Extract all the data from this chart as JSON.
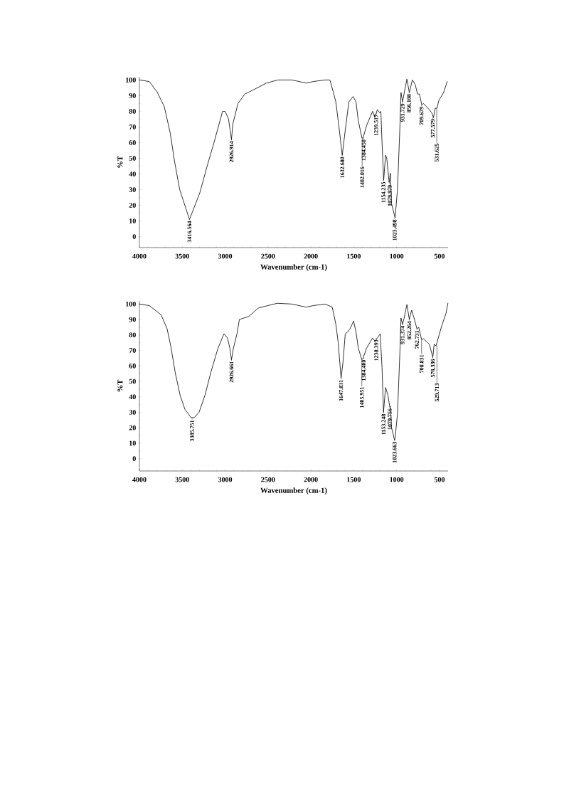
{
  "chart_data": [
    {
      "type": "line",
      "xlabel": "Wavenumber (cm-1)",
      "ylabel": "%T",
      "color": "#000000",
      "x": [
        4000,
        3884,
        3790,
        3710,
        3640,
        3590,
        3530,
        3416,
        3380,
        3295,
        3210,
        3130,
        3075,
        3030,
        3000,
        2960,
        2926,
        2910,
        2850,
        2770,
        2660,
        2520,
        2385,
        2221,
        2055,
        1972,
        1834,
        1778,
        1737,
        1709,
        1668,
        1634,
        1599,
        1557,
        1507,
        1474,
        1447,
        1405,
        1391,
        1350,
        1280,
        1253,
        1225,
        1197,
        1184,
        1170,
        1151,
        1129,
        1115,
        1087,
        1073,
        1059,
        1018,
        990,
        963,
        949,
        940,
        931,
        907,
        880,
        852,
        816,
        783,
        756,
        734,
        706,
        687,
        618,
        590,
        571,
        549,
        530,
        507,
        452,
        410
      ],
      "values": [
        100,
        99,
        92,
        83,
        66,
        48,
        30,
        11,
        16,
        28,
        45,
        60,
        71,
        80,
        80,
        75,
        62,
        72,
        85,
        91,
        94,
        98,
        100,
        100,
        98,
        99,
        100,
        100,
        92,
        86,
        68,
        52,
        68,
        86,
        89.5,
        86,
        74,
        63,
        63,
        71,
        80,
        76,
        81,
        79,
        80,
        60,
        36,
        52,
        50,
        34.5,
        40.5,
        21,
        12,
        30,
        68,
        92,
        89,
        86,
        93,
        100.5,
        92,
        100,
        97,
        91,
        91,
        84,
        85,
        81,
        79,
        76,
        82,
        82,
        87,
        92,
        99
      ],
      "xlim": [
        4000,
        400
      ],
      "ylim": [
        -7,
        102
      ],
      "xticks": [
        4000,
        3500,
        3000,
        2500,
        2000,
        1500,
        1000,
        500
      ],
      "yticks": [
        0,
        10,
        20,
        30,
        40,
        50,
        60,
        70,
        80,
        90,
        100
      ],
      "annotations": [
        {
          "text": "3416.564",
          "x": 3416,
          "y": 11
        },
        {
          "text": "2926.914",
          "x": 2926,
          "y": 62
        },
        {
          "text": "1632.680",
          "x": 1634,
          "y": 52
        },
        {
          "text": "1384.450",
          "x": 1384,
          "y": 63
        },
        {
          "text": "1402.016",
          "x": 1402,
          "y": 63
        },
        {
          "text": "1239.517",
          "x": 1239,
          "y": 79
        },
        {
          "text": "1154.235",
          "x": 1154,
          "y": 36
        },
        {
          "text": "1079.979",
          "x": 1080,
          "y": 34
        },
        {
          "text": "1023.498",
          "x": 1023,
          "y": 12
        },
        {
          "text": "931.729",
          "x": 931,
          "y": 86
        },
        {
          "text": "856.108",
          "x": 856,
          "y": 92
        },
        {
          "text": "709.679",
          "x": 710,
          "y": 84
        },
        {
          "text": "577.579",
          "x": 578,
          "y": 76
        },
        {
          "text": "531.625",
          "x": 532,
          "y": 82
        }
      ]
    },
    {
      "type": "line",
      "xlabel": "Wavenumber (cm-1)",
      "ylabel": "%T",
      "color": "#000000",
      "x": [
        4000,
        3884,
        3746,
        3677,
        3635,
        3580,
        3525,
        3470,
        3400,
        3360,
        3304,
        3235,
        3166,
        3083,
        3014,
        2972,
        2945,
        2926,
        2903,
        2862,
        2834,
        2724,
        2613,
        2503,
        2392,
        2221,
        2055,
        1972,
        1834,
        1751,
        1709,
        1681,
        1648,
        1626,
        1599,
        1571,
        1543,
        1502,
        1474,
        1447,
        1406,
        1391,
        1350,
        1280,
        1253,
        1225,
        1192,
        1170,
        1153,
        1129,
        1101,
        1080,
        1073,
        1059,
        1024,
        1018,
        990,
        963,
        949,
        931,
        914,
        880,
        852,
        825,
        797,
        763,
        742,
        709,
        687,
        618,
        578,
        562,
        540,
        479,
        424,
        402
      ],
      "values": [
        100,
        99,
        93,
        84,
        73,
        55,
        41,
        32,
        26.6,
        26.6,
        30,
        41,
        56,
        71.5,
        80.7,
        78,
        71.5,
        64,
        71.5,
        80.7,
        90,
        92,
        97.4,
        99,
        100.5,
        100,
        98,
        99,
        100,
        98,
        87,
        75,
        52,
        62,
        80.7,
        82,
        84,
        89,
        82,
        71.5,
        64,
        65,
        71.5,
        78,
        76,
        78,
        80.7,
        59,
        30,
        46,
        41,
        33.5,
        34,
        20,
        12,
        13,
        29,
        67,
        91,
        87,
        90.6,
        99.7,
        90,
        96,
        91,
        84,
        85,
        77,
        77.6,
        74,
        65.5,
        74,
        73,
        85,
        94,
        100.5
      ],
      "xlim": [
        4000,
        400
      ],
      "ylim": [
        -8,
        102
      ],
      "xticks": [
        4000,
        3500,
        3000,
        2500,
        2000,
        1500,
        1000,
        500
      ],
      "yticks": [
        0,
        10,
        20,
        30,
        40,
        50,
        60,
        70,
        80,
        90,
        100
      ],
      "annotations": [
        {
          "text": "3385.751",
          "x": 3386,
          "y": 26
        },
        {
          "text": "2926.661",
          "x": 2926,
          "y": 64
        },
        {
          "text": "1647.831",
          "x": 1648,
          "y": 52
        },
        {
          "text": "1384.400",
          "x": 1384,
          "y": 65
        },
        {
          "text": "1405.951",
          "x": 1406,
          "y": 64
        },
        {
          "text": "1238.393",
          "x": 1238,
          "y": 78
        },
        {
          "text": "1153.248",
          "x": 1153,
          "y": 30
        },
        {
          "text": "1079.756",
          "x": 1080,
          "y": 33.5
        },
        {
          "text": "1023.663",
          "x": 1024,
          "y": 12
        },
        {
          "text": "931.374",
          "x": 931,
          "y": 87
        },
        {
          "text": "852.264",
          "x": 852,
          "y": 90
        },
        {
          "text": "762.731",
          "x": 763,
          "y": 84
        },
        {
          "text": "708.831",
          "x": 709,
          "y": 77
        },
        {
          "text": "578.336",
          "x": 578,
          "y": 65.5
        },
        {
          "text": "529.713",
          "x": 530,
          "y": 73
        }
      ]
    }
  ]
}
